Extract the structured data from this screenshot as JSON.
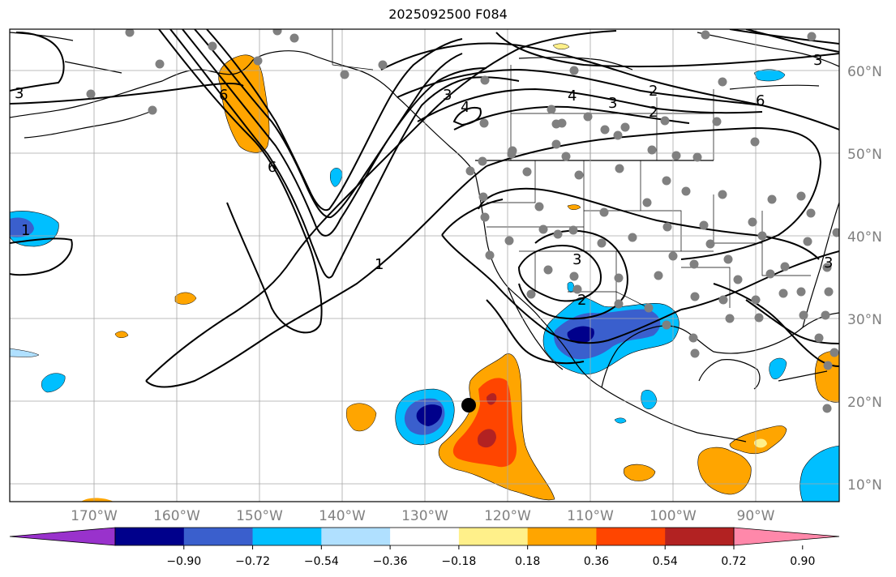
{
  "title": "2025092500 F084",
  "map": {
    "lon_labels": [
      "170°W",
      "160°W",
      "150°W",
      "140°W",
      "130°W",
      "120°W",
      "110°W",
      "100°W",
      "90°W"
    ],
    "lat_labels": [
      "60°N",
      "50°N",
      "40°N",
      "30°N",
      "20°N",
      "10°N"
    ],
    "contour_labels": [
      "3",
      "6",
      "1",
      "3",
      "4",
      "1",
      "3",
      "2",
      "4",
      "3",
      "2",
      "6",
      "6",
      "3",
      "3",
      "2"
    ],
    "colors": {
      "neg_strong": "#00008b",
      "neg_mid": "#3a5fcd",
      "neg_light": "#00bfff",
      "neg_pale": "#b0e0ff",
      "pos_pale": "#fff08a",
      "pos_light": "#ffa500",
      "pos_mid": "#ff4500",
      "pos_strong": "#b22222",
      "pos_extreme": "#ff88aa",
      "station": "#808080",
      "contour": "#000000"
    }
  },
  "colorbar": {
    "ticks": [
      "−0.90",
      "−0.72",
      "−0.54",
      "−0.36",
      "−0.18",
      "0.18",
      "0.36",
      "0.54",
      "0.72",
      "0.90"
    ],
    "colors": [
      "#9932cc",
      "#00008b",
      "#3a5fcd",
      "#00bfff",
      "#b0e0ff",
      "#ffffff",
      "#fff08a",
      "#ffa500",
      "#ff4500",
      "#b22222",
      "#ff88aa"
    ]
  }
}
